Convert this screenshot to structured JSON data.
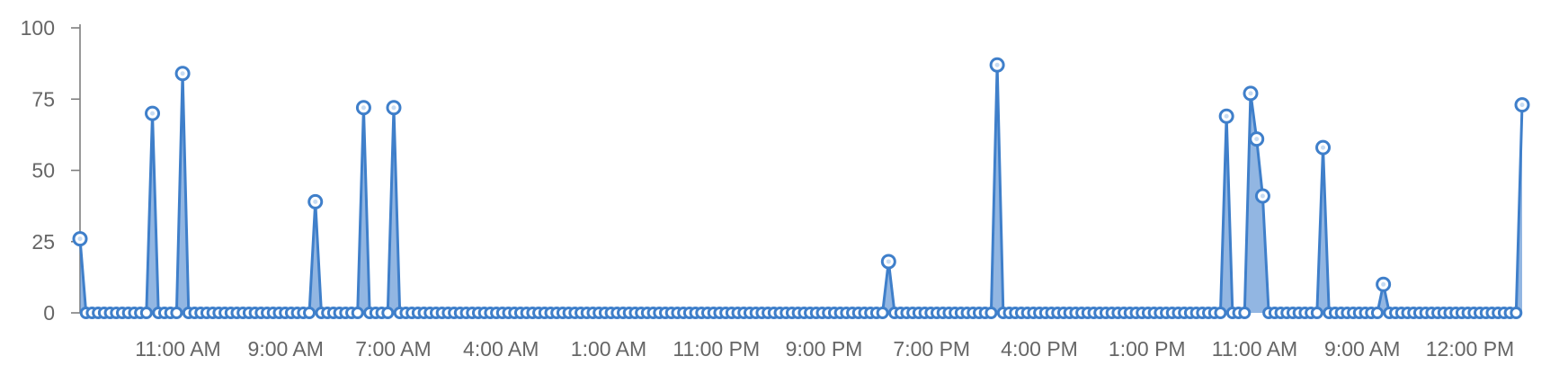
{
  "chart_data": {
    "type": "area",
    "title": "",
    "xlabel": "",
    "ylabel": "",
    "ylim": [
      0,
      100
    ],
    "y_ticks": [
      0,
      25,
      50,
      75,
      100
    ],
    "x_tick_labels": [
      "11:00 AM",
      "9:00 AM",
      "7:00 AM",
      "4:00 AM",
      "1:00 AM",
      "11:00 PM",
      "9:00 PM",
      "7:00 PM",
      "4:00 PM",
      "1:00 PM",
      "11:00 AM",
      "9:00 AM",
      "12:00 PM"
    ],
    "grid": false,
    "legend": "none",
    "point_count": 240,
    "baseline_value": 0,
    "peaks": [
      {
        "index": 0,
        "value": 26
      },
      {
        "index": 12,
        "value": 70
      },
      {
        "index": 17,
        "value": 84
      },
      {
        "index": 39,
        "value": 39
      },
      {
        "index": 47,
        "value": 72
      },
      {
        "index": 52,
        "value": 72
      },
      {
        "index": 134,
        "value": 18
      },
      {
        "index": 152,
        "value": 87
      },
      {
        "index": 190,
        "value": 69
      },
      {
        "index": 194,
        "value": 77
      },
      {
        "index": 195,
        "value": 61
      },
      {
        "index": 196,
        "value": 41
      },
      {
        "index": 206,
        "value": 58
      },
      {
        "index": 216,
        "value": 10
      },
      {
        "index": 239,
        "value": 73
      }
    ],
    "colors": {
      "series": "#3f7fca",
      "fill": "#4a86cf",
      "axis": "#7f7f7f",
      "text": "#666666"
    }
  }
}
